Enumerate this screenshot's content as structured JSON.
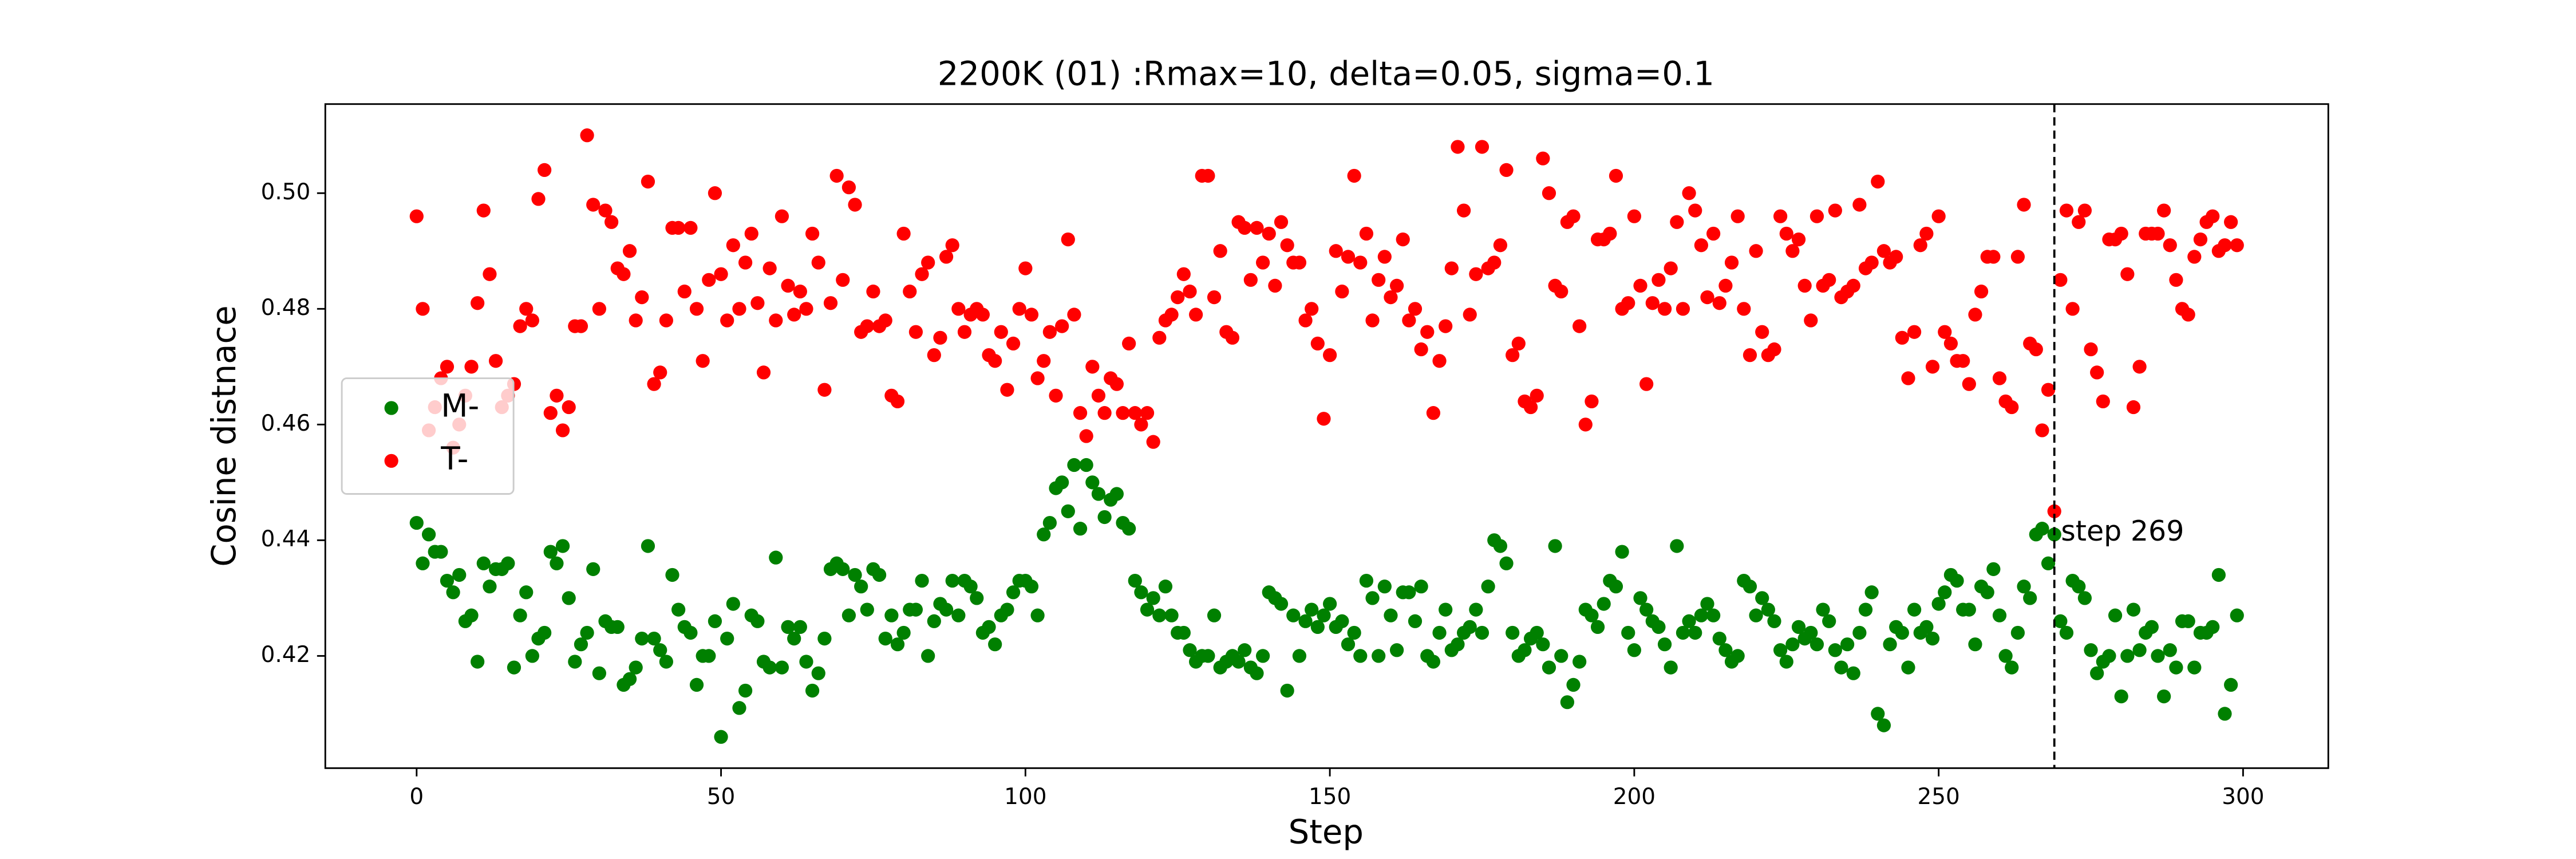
{
  "chart_data": {
    "type": "scatter",
    "title": "2200K (01) :Rmax=10, delta=0.05, sigma=0.1",
    "x_label": "Step",
    "y_label": "Cosine distnace",
    "x": [
      0,
      1,
      2,
      3,
      4,
      5,
      6,
      7,
      8,
      9,
      10,
      11,
      12,
      13,
      14,
      15,
      16,
      17,
      18,
      19,
      20,
      21,
      22,
      23,
      24,
      25,
      26,
      27,
      28,
      29,
      30,
      31,
      32,
      33,
      34,
      35,
      36,
      37,
      38,
      39,
      40,
      41,
      42,
      43,
      44,
      45,
      46,
      47,
      48,
      49,
      50,
      51,
      52,
      53,
      54,
      55,
      56,
      57,
      58,
      59,
      60,
      61,
      62,
      63,
      64,
      65,
      66,
      67,
      68,
      69,
      70,
      71,
      72,
      73,
      74,
      75,
      76,
      77,
      78,
      79,
      80,
      81,
      82,
      83,
      84,
      85,
      86,
      87,
      88,
      89,
      90,
      91,
      92,
      93,
      94,
      95,
      96,
      97,
      98,
      99,
      100,
      101,
      102,
      103,
      104,
      105,
      106,
      107,
      108,
      109,
      110,
      111,
      112,
      113,
      114,
      115,
      116,
      117,
      118,
      119,
      120,
      121,
      122,
      123,
      124,
      125,
      126,
      127,
      128,
      129,
      130,
      131,
      132,
      133,
      134,
      135,
      136,
      137,
      138,
      139,
      140,
      141,
      142,
      143,
      144,
      145,
      146,
      147,
      148,
      149,
      150,
      151,
      152,
      153,
      154,
      155,
      156,
      157,
      158,
      159,
      160,
      161,
      162,
      163,
      164,
      165,
      166,
      167,
      168,
      169,
      170,
      171,
      172,
      173,
      174,
      175,
      176,
      177,
      178,
      179,
      180,
      181,
      182,
      183,
      184,
      185,
      186,
      187,
      188,
      189,
      190,
      191,
      192,
      193,
      194,
      195,
      196,
      197,
      198,
      199,
      200,
      201,
      202,
      203,
      204,
      205,
      206,
      207,
      208,
      209,
      210,
      211,
      212,
      213,
      214,
      215,
      216,
      217,
      218,
      219,
      220,
      221,
      222,
      223,
      224,
      225,
      226,
      227,
      228,
      229,
      230,
      231,
      232,
      233,
      234,
      235,
      236,
      237,
      238,
      239,
      240,
      241,
      242,
      243,
      244,
      245,
      246,
      247,
      248,
      249,
      250,
      251,
      252,
      253,
      254,
      255,
      256,
      257,
      258,
      259,
      260,
      261,
      262,
      263,
      264,
      265,
      266,
      267,
      268,
      269,
      270,
      271,
      272,
      273,
      274,
      275,
      276,
      277,
      278,
      279,
      280,
      281,
      282,
      283,
      284,
      285,
      286,
      287,
      288,
      289,
      290,
      291,
      292,
      293,
      294,
      295,
      296,
      297,
      298,
      299
    ],
    "series": [
      {
        "name": "M-",
        "color": "#008000",
        "values": [
          0.443,
          0.436,
          0.441,
          0.438,
          0.438,
          0.433,
          0.431,
          0.434,
          0.426,
          0.427,
          0.419,
          0.436,
          0.432,
          0.435,
          0.435,
          0.436,
          0.418,
          0.427,
          0.431,
          0.42,
          0.423,
          0.424,
          0.438,
          0.436,
          0.439,
          0.43,
          0.419,
          0.422,
          0.424,
          0.435,
          0.417,
          0.426,
          0.425,
          0.425,
          0.415,
          0.416,
          0.418,
          0.423,
          0.439,
          0.423,
          0.421,
          0.419,
          0.434,
          0.428,
          0.425,
          0.424,
          0.415,
          0.42,
          0.42,
          0.426,
          0.406,
          0.423,
          0.429,
          0.411,
          0.414,
          0.427,
          0.426,
          0.419,
          0.418,
          0.437,
          0.418,
          0.425,
          0.423,
          0.425,
          0.419,
          0.414,
          0.417,
          0.423,
          0.435,
          0.436,
          0.435,
          0.427,
          0.434,
          0.432,
          0.428,
          0.435,
          0.434,
          0.423,
          0.427,
          0.422,
          0.424,
          0.428,
          0.428,
          0.433,
          0.42,
          0.426,
          0.429,
          0.428,
          0.433,
          0.427,
          0.433,
          0.432,
          0.43,
          0.424,
          0.425,
          0.422,
          0.427,
          0.428,
          0.431,
          0.433,
          0.433,
          0.432,
          0.427,
          0.441,
          0.443,
          0.449,
          0.45,
          0.445,
          0.453,
          0.442,
          0.453,
          0.45,
          0.448,
          0.444,
          0.447,
          0.448,
          0.443,
          0.442,
          0.433,
          0.431,
          0.428,
          0.43,
          0.427,
          0.432,
          0.427,
          0.424,
          0.424,
          0.421,
          0.419,
          0.42,
          0.42,
          0.427,
          0.418,
          0.419,
          0.42,
          0.419,
          0.421,
          0.418,
          0.417,
          0.42,
          0.431,
          0.43,
          0.429,
          0.414,
          0.427,
          0.42,
          0.426,
          0.428,
          0.425,
          0.427,
          0.429,
          0.425,
          0.426,
          0.422,
          0.424,
          0.42,
          0.433,
          0.43,
          0.42,
          0.432,
          0.427,
          0.421,
          0.431,
          0.431,
          0.426,
          0.432,
          0.42,
          0.419,
          0.424,
          0.428,
          0.421,
          0.422,
          0.424,
          0.425,
          0.428,
          0.424,
          0.432,
          0.44,
          0.439,
          0.436,
          0.424,
          0.42,
          0.421,
          0.423,
          0.424,
          0.422,
          0.418,
          0.439,
          0.42,
          0.412,
          0.415,
          0.419,
          0.428,
          0.427,
          0.425,
          0.429,
          0.433,
          0.432,
          0.438,
          0.424,
          0.421,
          0.43,
          0.428,
          0.426,
          0.425,
          0.422,
          0.418,
          0.439,
          0.424,
          0.426,
          0.424,
          0.427,
          0.429,
          0.427,
          0.423,
          0.421,
          0.419,
          0.42,
          0.433,
          0.432,
          0.427,
          0.43,
          0.428,
          0.426,
          0.421,
          0.419,
          0.422,
          0.425,
          0.423,
          0.424,
          0.422,
          0.428,
          0.426,
          0.421,
          0.418,
          0.422,
          0.417,
          0.424,
          0.428,
          0.431,
          0.41,
          0.408,
          0.422,
          0.425,
          0.424,
          0.418,
          0.428,
          0.424,
          0.425,
          0.423,
          0.429,
          0.431,
          0.434,
          0.433,
          0.428,
          0.428,
          0.422,
          0.432,
          0.431,
          0.435,
          0.427,
          0.42,
          0.418,
          0.424,
          0.432,
          0.43,
          0.441,
          0.442,
          0.436,
          0.441,
          0.426,
          0.424,
          0.433,
          0.432,
          0.43,
          0.421,
          0.417,
          0.419,
          0.42,
          0.427,
          0.413,
          0.42,
          0.428,
          0.421,
          0.424,
          0.425,
          0.42,
          0.413,
          0.421,
          0.418,
          0.426,
          0.426,
          0.418,
          0.424,
          0.424,
          0.425,
          0.434,
          0.41,
          0.415,
          0.427
        ]
      },
      {
        "name": "T-",
        "color": "#ff0000",
        "values": [
          0.496,
          0.48,
          0.459,
          0.463,
          0.468,
          0.47,
          0.456,
          0.46,
          0.465,
          0.47,
          0.481,
          0.497,
          0.486,
          0.471,
          0.463,
          0.465,
          0.467,
          0.477,
          0.48,
          0.478,
          0.499,
          0.504,
          0.462,
          0.465,
          0.459,
          0.463,
          0.477,
          0.477,
          0.51,
          0.498,
          0.48,
          0.497,
          0.495,
          0.487,
          0.486,
          0.49,
          0.478,
          0.482,
          0.502,
          0.467,
          0.469,
          0.478,
          0.494,
          0.494,
          0.483,
          0.494,
          0.48,
          0.471,
          0.485,
          0.5,
          0.486,
          0.478,
          0.491,
          0.48,
          0.488,
          0.493,
          0.481,
          0.469,
          0.487,
          0.478,
          0.496,
          0.484,
          0.479,
          0.483,
          0.48,
          0.493,
          0.488,
          0.466,
          0.481,
          0.503,
          0.485,
          0.501,
          0.498,
          0.476,
          0.477,
          0.483,
          0.477,
          0.478,
          0.465,
          0.464,
          0.493,
          0.483,
          0.476,
          0.486,
          0.488,
          0.472,
          0.475,
          0.489,
          0.491,
          0.48,
          0.476,
          0.479,
          0.48,
          0.479,
          0.472,
          0.471,
          0.476,
          0.466,
          0.474,
          0.48,
          0.487,
          0.479,
          0.468,
          0.471,
          0.476,
          0.465,
          0.477,
          0.492,
          0.479,
          0.462,
          0.458,
          0.47,
          0.465,
          0.462,
          0.468,
          0.467,
          0.462,
          0.474,
          0.462,
          0.46,
          0.462,
          0.457,
          0.475,
          0.478,
          0.479,
          0.482,
          0.486,
          0.483,
          0.479,
          0.503,
          0.503,
          0.482,
          0.49,
          0.476,
          0.475,
          0.495,
          0.494,
          0.485,
          0.494,
          0.488,
          0.493,
          0.484,
          0.495,
          0.491,
          0.488,
          0.488,
          0.478,
          0.48,
          0.474,
          0.461,
          0.472,
          0.49,
          0.483,
          0.489,
          0.503,
          0.488,
          0.493,
          0.478,
          0.485,
          0.489,
          0.482,
          0.484,
          0.492,
          0.478,
          0.48,
          0.473,
          0.476,
          0.462,
          0.471,
          0.477,
          0.487,
          0.508,
          0.497,
          0.479,
          0.486,
          0.508,
          0.487,
          0.488,
          0.491,
          0.504,
          0.472,
          0.474,
          0.464,
          0.463,
          0.465,
          0.506,
          0.5,
          0.484,
          0.483,
          0.495,
          0.496,
          0.477,
          0.46,
          0.464,
          0.492,
          0.492,
          0.493,
          0.503,
          0.48,
          0.481,
          0.496,
          0.484,
          0.467,
          0.481,
          0.485,
          0.48,
          0.487,
          0.495,
          0.48,
          0.5,
          0.497,
          0.491,
          0.482,
          0.493,
          0.481,
          0.484,
          0.488,
          0.496,
          0.48,
          0.472,
          0.49,
          0.476,
          0.472,
          0.473,
          0.496,
          0.493,
          0.49,
          0.492,
          0.484,
          0.478,
          0.496,
          0.484,
          0.485,
          0.497,
          0.482,
          0.483,
          0.484,
          0.498,
          0.487,
          0.488,
          0.502,
          0.49,
          0.488,
          0.489,
          0.475,
          0.468,
          0.476,
          0.491,
          0.493,
          0.47,
          0.496,
          0.476,
          0.474,
          0.471,
          0.471,
          0.467,
          0.479,
          0.483,
          0.489,
          0.489,
          0.468,
          0.464,
          0.463,
          0.489,
          0.498,
          0.474,
          0.473,
          0.459,
          0.466,
          0.445,
          0.485,
          0.497,
          0.48,
          0.495,
          0.497,
          0.473,
          0.469,
          0.464,
          0.492,
          0.492,
          0.493,
          0.486,
          0.463,
          0.47,
          0.493,
          0.493,
          0.493,
          0.497,
          0.491,
          0.485,
          0.48,
          0.479,
          0.489,
          0.492,
          0.495,
          0.496,
          0.49,
          0.491,
          0.495,
          0.491
        ]
      }
    ],
    "xlim": [
      -15,
      314
    ],
    "ylim": [
      0.4006,
      0.5154
    ],
    "xticks": [
      0,
      50,
      100,
      150,
      200,
      250,
      300
    ],
    "yticks": [
      0.42,
      0.44,
      0.46,
      0.48,
      {
        "value": 0.5,
        "label": "0.50"
      }
    ],
    "vline_x": 269,
    "annotations": [
      {
        "text": "step 269",
        "x": 269,
        "y": 0.441
      }
    ],
    "legend": "center left",
    "grid": false
  }
}
